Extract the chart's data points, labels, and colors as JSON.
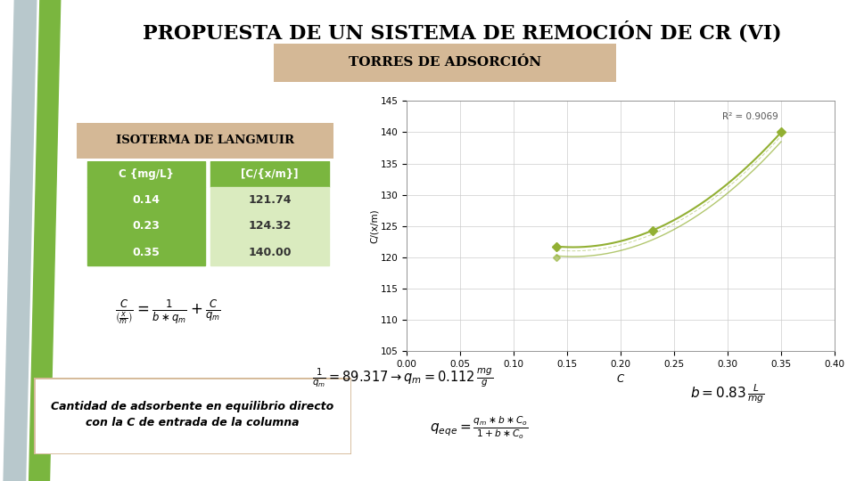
{
  "title": "PROPUESTA DE UN SISTEMA DE REMOCIÓN DE CR (VI)",
  "subtitle": "TORRES DE ADSORCIÓN",
  "section_label": "ISOTERMA DE LANGMUIR",
  "table_headers": [
    "C {mg/L}",
    "[C/{x/m}]"
  ],
  "table_data": [
    [
      "0.14",
      "121.74"
    ],
    [
      "0.23",
      "124.32"
    ],
    [
      "0.35",
      "140.00"
    ]
  ],
  "c_values": [
    0.14,
    0.23,
    0.35
  ],
  "cxm_values": [
    121.74,
    124.32,
    140.0
  ],
  "r_squared": "R² = 0.9069",
  "xlabel": "C",
  "ylabel": "C/(x/m)",
  "xlim": [
    0,
    0.4
  ],
  "ylim": [
    105,
    145
  ],
  "x_ticks": [
    0,
    0.05,
    0.1,
    0.15,
    0.2,
    0.25,
    0.3,
    0.35,
    0.4
  ],
  "y_ticks": [
    105,
    110,
    115,
    120,
    125,
    130,
    135,
    140,
    145
  ],
  "background_color": "#ffffff",
  "title_color": "#000000",
  "subtitle_box_color": "#d4b896",
  "section_box_color": "#d4b896",
  "table_header_bg": "#7ab63f",
  "table_row_bg_dark": "#7ab63f",
  "table_row_bg_light": "#daebbf",
  "chart_line_color": "#92b033",
  "stripe_color_green": "#7ab63f",
  "stripe_color_gray": "#b8c8cc"
}
